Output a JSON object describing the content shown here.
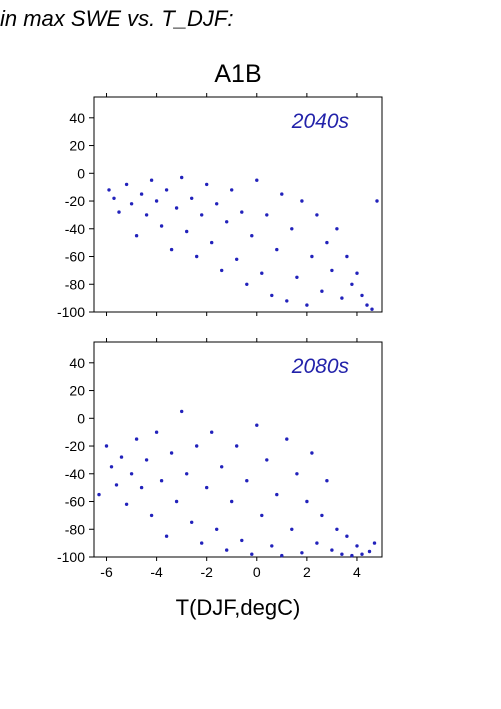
{
  "header": {
    "text": "in max SWE vs. T_DJF:"
  },
  "figure": {
    "title": "A1B",
    "xlabel": "T(DJF,degC)"
  },
  "chart_data": [
    {
      "type": "scatter",
      "annotation": "2040s",
      "xlim": [
        -6.5,
        5.0
      ],
      "ylim": [
        -100,
        55
      ],
      "xticks": [
        -6,
        -4,
        -2,
        0,
        2,
        4
      ],
      "yticks": [
        -100,
        -80,
        -60,
        -40,
        -20,
        0,
        20,
        40
      ],
      "x_tick_labels_shown": false,
      "grid": false,
      "marker_color": "#2222bb",
      "points": [
        [
          -5.9,
          -12
        ],
        [
          -5.7,
          -18
        ],
        [
          -5.5,
          -28
        ],
        [
          -5.2,
          -8
        ],
        [
          -5.0,
          -22
        ],
        [
          -4.8,
          -45
        ],
        [
          -4.6,
          -15
        ],
        [
          -4.4,
          -30
        ],
        [
          -4.2,
          -5
        ],
        [
          -4.0,
          -20
        ],
        [
          -3.8,
          -38
        ],
        [
          -3.6,
          -12
        ],
        [
          -3.4,
          -55
        ],
        [
          -3.2,
          -25
        ],
        [
          -3.0,
          -3
        ],
        [
          -2.8,
          -42
        ],
        [
          -2.6,
          -18
        ],
        [
          -2.4,
          -60
        ],
        [
          -2.2,
          -30
        ],
        [
          -2.0,
          -8
        ],
        [
          -1.8,
          -50
        ],
        [
          -1.6,
          -22
        ],
        [
          -1.4,
          -70
        ],
        [
          -1.2,
          -35
        ],
        [
          -1.0,
          -12
        ],
        [
          -0.8,
          -62
        ],
        [
          -0.6,
          -28
        ],
        [
          -0.4,
          -80
        ],
        [
          -0.2,
          -45
        ],
        [
          0.0,
          -5
        ],
        [
          0.2,
          -72
        ],
        [
          0.4,
          -30
        ],
        [
          0.6,
          -88
        ],
        [
          0.8,
          -55
        ],
        [
          1.0,
          -15
        ],
        [
          1.2,
          -92
        ],
        [
          1.4,
          -40
        ],
        [
          1.6,
          -75
        ],
        [
          1.8,
          -20
        ],
        [
          2.0,
          -95
        ],
        [
          2.2,
          -60
        ],
        [
          2.4,
          -30
        ],
        [
          2.6,
          -85
        ],
        [
          2.8,
          -50
        ],
        [
          3.0,
          -70
        ],
        [
          3.2,
          -40
        ],
        [
          3.4,
          -90
        ],
        [
          3.6,
          -60
        ],
        [
          3.8,
          -80
        ],
        [
          4.0,
          -72
        ],
        [
          4.2,
          -88
        ],
        [
          4.4,
          -95
        ],
        [
          4.6,
          -98
        ],
        [
          4.8,
          -20
        ]
      ]
    },
    {
      "type": "scatter",
      "annotation": "2080s",
      "xlim": [
        -6.5,
        5.0
      ],
      "ylim": [
        -100,
        55
      ],
      "xticks": [
        -6,
        -4,
        -2,
        0,
        2,
        4
      ],
      "yticks": [
        -100,
        -80,
        -60,
        -40,
        -20,
        0,
        20,
        40
      ],
      "x_tick_labels_shown": true,
      "grid": false,
      "marker_color": "#2222bb",
      "points": [
        [
          -6.3,
          -55
        ],
        [
          -6.0,
          -20
        ],
        [
          -5.8,
          -35
        ],
        [
          -5.6,
          -48
        ],
        [
          -5.4,
          -28
        ],
        [
          -5.2,
          -62
        ],
        [
          -5.0,
          -40
        ],
        [
          -4.8,
          -15
        ],
        [
          -4.6,
          -50
        ],
        [
          -4.4,
          -30
        ],
        [
          -4.2,
          -70
        ],
        [
          -4.0,
          -10
        ],
        [
          -3.8,
          -45
        ],
        [
          -3.6,
          -85
        ],
        [
          -3.4,
          -25
        ],
        [
          -3.2,
          -60
        ],
        [
          -3.0,
          5
        ],
        [
          -2.8,
          -40
        ],
        [
          -2.6,
          -75
        ],
        [
          -2.4,
          -20
        ],
        [
          -2.2,
          -90
        ],
        [
          -2.0,
          -50
        ],
        [
          -1.8,
          -10
        ],
        [
          -1.6,
          -80
        ],
        [
          -1.4,
          -35
        ],
        [
          -1.2,
          -95
        ],
        [
          -1.0,
          -60
        ],
        [
          -0.8,
          -20
        ],
        [
          -0.6,
          -88
        ],
        [
          -0.4,
          -45
        ],
        [
          -0.2,
          -98
        ],
        [
          0.0,
          -5
        ],
        [
          0.2,
          -70
        ],
        [
          0.4,
          -30
        ],
        [
          0.6,
          -92
        ],
        [
          0.8,
          -55
        ],
        [
          1.0,
          -99
        ],
        [
          1.2,
          -15
        ],
        [
          1.4,
          -80
        ],
        [
          1.6,
          -40
        ],
        [
          1.8,
          -97
        ],
        [
          2.0,
          -60
        ],
        [
          2.2,
          -25
        ],
        [
          2.4,
          -90
        ],
        [
          2.6,
          -70
        ],
        [
          2.8,
          -45
        ],
        [
          3.0,
          -95
        ],
        [
          3.2,
          -80
        ],
        [
          3.4,
          -98
        ],
        [
          3.6,
          -85
        ],
        [
          3.8,
          -99
        ],
        [
          4.0,
          -92
        ],
        [
          4.2,
          -98
        ],
        [
          4.5,
          -96
        ],
        [
          4.7,
          -90
        ]
      ]
    }
  ]
}
